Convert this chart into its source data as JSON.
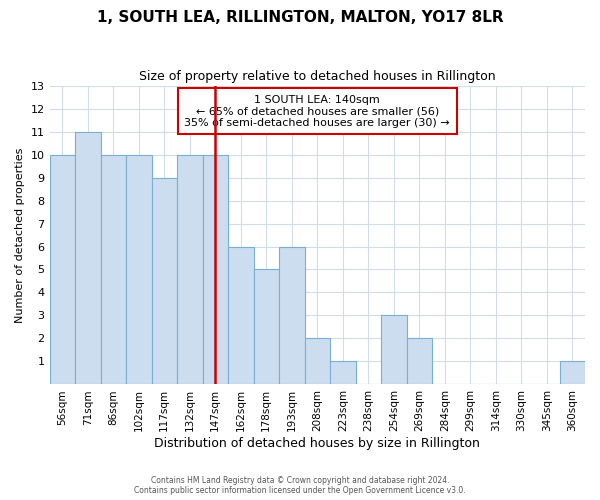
{
  "title": "1, SOUTH LEA, RILLINGTON, MALTON, YO17 8LR",
  "subtitle": "Size of property relative to detached houses in Rillington",
  "xlabel": "Distribution of detached houses by size in Rillington",
  "ylabel": "Number of detached properties",
  "bar_color": "#ccddf0",
  "bar_edge_color": "#7aafd4",
  "categories": [
    "56sqm",
    "71sqm",
    "86sqm",
    "102sqm",
    "117sqm",
    "132sqm",
    "147sqm",
    "162sqm",
    "178sqm",
    "193sqm",
    "208sqm",
    "223sqm",
    "238sqm",
    "254sqm",
    "269sqm",
    "284sqm",
    "299sqm",
    "314sqm",
    "330sqm",
    "345sqm",
    "360sqm"
  ],
  "values": [
    10,
    11,
    10,
    10,
    9,
    10,
    10,
    6,
    5,
    6,
    2,
    1,
    0,
    3,
    2,
    0,
    0,
    0,
    0,
    0,
    1
  ],
  "ylim": [
    0,
    13
  ],
  "yticks": [
    0,
    1,
    2,
    3,
    4,
    5,
    6,
    7,
    8,
    9,
    10,
    11,
    12,
    13
  ],
  "vline_x_idx": 6,
  "vline_color": "#cc0000",
  "annotation_title": "1 SOUTH LEA: 140sqm",
  "annotation_line1": "← 65% of detached houses are smaller (56)",
  "annotation_line2": "35% of semi-detached houses are larger (30) →",
  "annotation_box_color": "#ffffff",
  "annotation_box_edge_color": "#cc0000",
  "footer1": "Contains HM Land Registry data © Crown copyright and database right 2024.",
  "footer2": "Contains public sector information licensed under the Open Government Licence v3.0.",
  "background_color": "#ffffff",
  "plot_background": "#ffffff",
  "grid_color": "#d0dce8"
}
